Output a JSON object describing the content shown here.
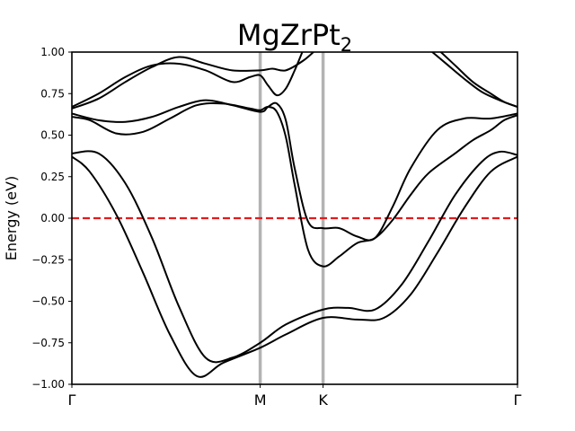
{
  "chart_data": {
    "type": "line",
    "title_main": "MgZrPt",
    "title_subscript": "2",
    "ylabel": "Energy (eV)",
    "xlabel": "",
    "ylim": [
      -1.0,
      1.0
    ],
    "yticks": [
      "1.00",
      "0.75",
      "0.50",
      "0.25",
      "0.00",
      "−0.25",
      "−0.50",
      "−0.75",
      "−1.00"
    ],
    "ytick_values": [
      1.0,
      0.75,
      0.5,
      0.25,
      0.0,
      -0.25,
      -0.5,
      -0.75,
      -1.0
    ],
    "kpoints": [
      {
        "label": "Γ",
        "x": 0.0
      },
      {
        "label": "M",
        "x": 0.4226
      },
      {
        "label": "K",
        "x": 0.5637
      },
      {
        "label": "Γ",
        "x": 1.0
      }
    ],
    "fermi_level": 0.0,
    "grid": false,
    "colors": {
      "bands": "#000000",
      "fermi": "#e41a1c",
      "kpoint_lines": "#b3b3b3"
    },
    "series": [
      {
        "x": [
          0.0,
          0.04,
          0.1,
          0.16,
          0.22,
          0.28,
          0.34,
          0.4226,
          0.48,
          0.5637,
          0.64,
          0.7,
          0.76,
          0.82,
          0.88,
          0.94,
          1.0
        ],
        "y": [
          0.37,
          0.28,
          0.02,
          -0.33,
          -0.7,
          -0.95,
          -0.87,
          -0.78,
          -0.7,
          -0.6,
          -0.61,
          -0.6,
          -0.46,
          -0.21,
          0.06,
          0.28,
          0.37
        ]
      },
      {
        "x": [
          0.0,
          0.06,
          0.12,
          0.18,
          0.24,
          0.3,
          0.36,
          0.4226,
          0.48,
          0.5637,
          0.62,
          0.68,
          0.74,
          0.8,
          0.86,
          0.92,
          0.96,
          1.0
        ],
        "y": [
          0.39,
          0.39,
          0.21,
          -0.12,
          -0.53,
          -0.84,
          -0.84,
          -0.75,
          -0.64,
          -0.55,
          -0.54,
          -0.55,
          -0.4,
          -0.14,
          0.14,
          0.34,
          0.4,
          0.38
        ]
      },
      {
        "x": [
          0.0,
          0.04,
          0.1,
          0.16,
          0.22,
          0.28,
          0.34,
          0.4,
          0.4226,
          0.44,
          0.46,
          0.48,
          0.5,
          0.53,
          0.5637,
          0.6,
          0.64,
          0.68,
          0.72,
          0.76,
          0.8,
          0.86,
          0.9,
          0.94,
          0.97,
          1.0
        ],
        "y": [
          0.61,
          0.59,
          0.51,
          0.52,
          0.6,
          0.68,
          0.69,
          0.66,
          0.65,
          0.67,
          0.64,
          0.49,
          0.2,
          -0.19,
          -0.29,
          -0.23,
          -0.15,
          -0.12,
          -0.01,
          0.14,
          0.27,
          0.39,
          0.47,
          0.53,
          0.59,
          0.62
        ]
      },
      {
        "x": [
          0.0,
          0.06,
          0.12,
          0.18,
          0.24,
          0.3,
          0.36,
          0.4226,
          0.44,
          0.46,
          0.48,
          0.5,
          0.53,
          0.5637,
          0.6,
          0.64,
          0.68,
          0.72,
          0.76,
          0.82,
          0.88,
          0.94,
          1.0
        ],
        "y": [
          0.63,
          0.59,
          0.58,
          0.61,
          0.67,
          0.71,
          0.68,
          0.64,
          0.67,
          0.69,
          0.59,
          0.3,
          -0.02,
          -0.06,
          -0.06,
          -0.11,
          -0.12,
          0.07,
          0.3,
          0.53,
          0.6,
          0.6,
          0.63
        ]
      },
      {
        "x": [
          0.0,
          0.06,
          0.12,
          0.18,
          0.24,
          0.3,
          0.36,
          0.4226,
          0.45,
          0.48,
          0.52,
          0.55
        ],
        "y": [
          0.66,
          0.72,
          0.82,
          0.91,
          0.97,
          0.93,
          0.89,
          0.89,
          0.9,
          0.89,
          0.95,
          1.02
        ]
      },
      {
        "x": [
          0.0,
          0.06,
          0.12,
          0.18,
          0.24,
          0.3,
          0.36,
          0.4,
          0.4226,
          0.44,
          0.46,
          0.48,
          0.5,
          0.52
        ],
        "y": [
          0.67,
          0.75,
          0.85,
          0.92,
          0.93,
          0.89,
          0.82,
          0.85,
          0.86,
          0.8,
          0.74,
          0.78,
          0.89,
          1.02
        ]
      },
      {
        "x": [
          0.8,
          0.84,
          0.88,
          0.92,
          0.96,
          1.0
        ],
        "y": [
          1.02,
          0.93,
          0.84,
          0.76,
          0.71,
          0.67
        ]
      },
      {
        "x": [
          0.82,
          0.86,
          0.9,
          0.94,
          0.97,
          1.0
        ],
        "y": [
          1.02,
          0.92,
          0.82,
          0.75,
          0.7,
          0.67
        ]
      }
    ]
  }
}
